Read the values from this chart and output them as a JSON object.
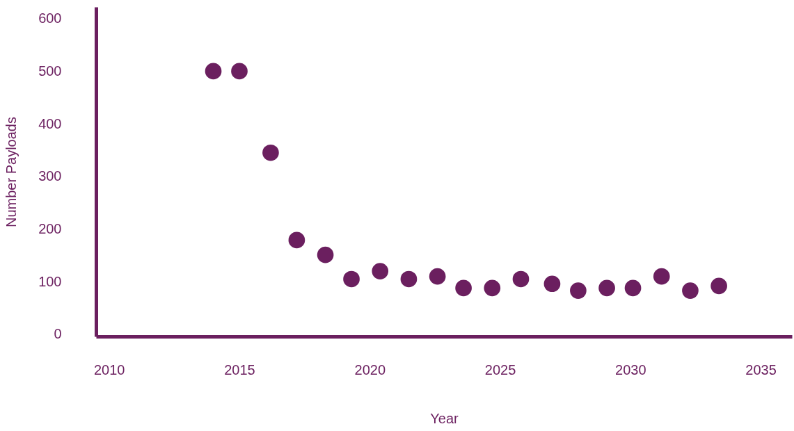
{
  "chart_data": {
    "type": "scatter",
    "xlabel": "Year",
    "ylabel": "Number Payloads",
    "x": [
      2014.0,
      2015.0,
      2016.2,
      2017.2,
      2018.3,
      2019.3,
      2020.4,
      2021.5,
      2022.6,
      2023.6,
      2024.7,
      2025.8,
      2027.0,
      2028.0,
      2029.1,
      2030.1,
      2031.2,
      2032.3,
      2033.4
    ],
    "values": [
      500,
      500,
      345,
      179,
      151,
      105,
      120,
      105,
      110,
      88,
      88,
      105,
      96,
      83,
      88,
      88,
      110,
      83,
      92
    ],
    "color": "#6b1f5f",
    "marker": "circle",
    "grid": false,
    "xlim": [
      2009.5,
      2036.2
    ],
    "xticks": [
      2010,
      2015,
      2020,
      2025,
      2030,
      2035
    ],
    "ylim": [
      -4,
      622
    ],
    "yticks": [
      0,
      100,
      200,
      300,
      400,
      500,
      600
    ]
  }
}
